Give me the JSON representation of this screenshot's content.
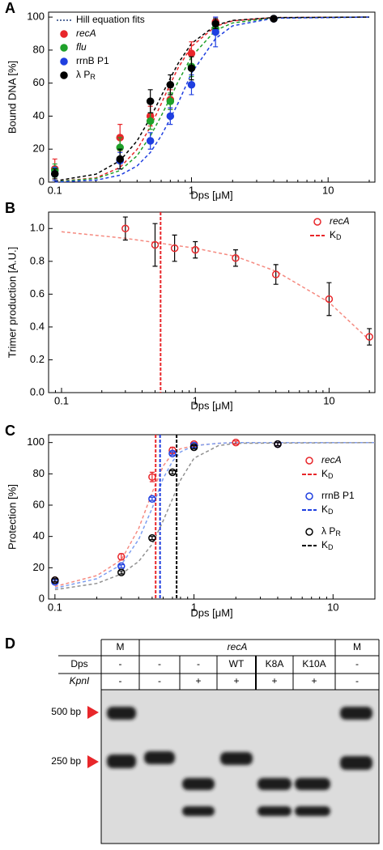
{
  "chart_data": [
    {
      "type": "scatter",
      "panel": "A",
      "xlabel": "Dps [μM]",
      "ylabel": "Bound DNA [%]",
      "xscale": "log",
      "xlim": [
        0.09,
        22
      ],
      "xticks": [
        0.1,
        1,
        10
      ],
      "ylim": [
        0,
        103
      ],
      "yticks": [
        0,
        20,
        40,
        60,
        80,
        100
      ],
      "legend": "upper left",
      "marker": "filled",
      "fit_label": "Hill equation fits",
      "fit_color": "#24407f",
      "fit_x": [
        0.1,
        0.2,
        0.3,
        0.4,
        0.5,
        0.6,
        0.7,
        0.8,
        1,
        1.5,
        2,
        4,
        20
      ],
      "series": [
        {
          "name": "recA",
          "color": "#e8262a",
          "fit_color": "#e8262a",
          "x": [
            0.1,
            0.3,
            0.5,
            0.7,
            1,
            1.5,
            4
          ],
          "values": [
            8,
            27,
            40,
            50,
            78,
            97,
            99
          ],
          "errors": [
            6,
            8,
            6,
            6,
            7,
            3,
            1
          ],
          "fit": [
            0.3,
            2.6,
            8.9,
            19.8,
            33.4,
            47.4,
            59.5,
            69.3,
            82.2,
            94.4,
            97.7,
            99.7,
            100
          ]
        },
        {
          "name": "flu",
          "color": "#1fa12a",
          "fit_color": "#1fa12a",
          "x": [
            0.1,
            0.3,
            0.5,
            0.7,
            1,
            1.5,
            4
          ],
          "values": [
            7,
            21,
            37,
            49,
            70,
            93,
            99
          ],
          "errors": [
            4,
            6,
            5,
            5,
            6,
            3,
            1
          ],
          "fit": [
            0.3,
            2.2,
            7,
            16,
            28,
            40,
            51,
            61,
            76,
            92,
            96.5,
            99.5,
            100
          ]
        },
        {
          "name": "rrnB P1",
          "color": "#1f3fe0",
          "fit_color": "#1f3fe0",
          "x": [
            0.1,
            0.3,
            0.5,
            0.7,
            1,
            1.5,
            4
          ],
          "values": [
            5,
            13,
            25,
            40,
            59,
            91,
            99
          ],
          "errors": [
            4,
            5,
            5,
            5,
            6,
            9,
            1
          ],
          "fit": [
            0.1,
            1.2,
            4.2,
            9.8,
            18,
            28,
            38.5,
            48,
            66,
            87,
            94.7,
            99.3,
            100
          ]
        },
        {
          "name": "λ P",
          "name_sub": "R",
          "color": "#000000",
          "fit_color": "#000000",
          "x": [
            0.1,
            0.3,
            0.5,
            0.7,
            1,
            1.5,
            4
          ],
          "values": [
            5,
            14,
            49,
            59,
            69,
            96,
            99
          ],
          "errors": [
            3,
            6,
            7,
            6,
            7,
            3,
            1
          ],
          "fit": [
            0.7,
            4.8,
            13,
            25,
            39,
            52,
            63,
            72,
            84,
            95,
            98,
            99.7,
            100
          ]
        }
      ]
    },
    {
      "type": "scatter",
      "panel": "B",
      "xlabel": "Dps [μM]",
      "ylabel": "Trimer production [A.U.]",
      "xscale": "log",
      "xlim": [
        0.08,
        22
      ],
      "xticks": [
        0.1,
        1,
        10
      ],
      "ylim": [
        0,
        1.1
      ],
      "yticks": [
        {
          "value": 0,
          "label": "0.0"
        },
        0.2,
        0.4,
        0.6,
        0.8,
        {
          "value": 1,
          "label": "1.0"
        }
      ],
      "legend": "upper right",
      "marker": "open",
      "errorbar_color": "#000000",
      "fit_x": [
        0.1,
        0.3,
        1,
        2,
        4,
        10,
        20
      ],
      "series": [
        {
          "name": "recA",
          "color": "#e8262a",
          "fit_color": "#f58a80",
          "x": [
            0.3,
            0.5,
            0.7,
            1,
            2,
            4,
            10,
            20
          ],
          "values": [
            1.0,
            0.9,
            0.88,
            0.87,
            0.82,
            0.72,
            0.57,
            0.34
          ],
          "errors": [
            0.07,
            0.13,
            0.08,
            0.05,
            0.05,
            0.06,
            0.1,
            0.05
          ],
          "fit": [
            0.98,
            0.94,
            0.88,
            0.83,
            0.74,
            0.55,
            0.32
          ],
          "kd": {
            "value": 0.55,
            "label": "K",
            "label_sub": "D",
            "color": "#e8262a"
          }
        }
      ]
    },
    {
      "type": "scatter",
      "panel": "C",
      "xlabel": "Dps [μM]",
      "ylabel": "Protection [%]",
      "xscale": "log",
      "xlim": [
        0.09,
        20
      ],
      "xticks": [
        0.1,
        1,
        10
      ],
      "ylim": [
        0,
        105
      ],
      "yticks": [
        0,
        20,
        40,
        60,
        80,
        100
      ],
      "legend": "right",
      "marker": "open",
      "fit_x": [
        0.1,
        0.2,
        0.3,
        0.4,
        0.5,
        0.6,
        0.7,
        0.8,
        1,
        1.5,
        2,
        20
      ],
      "series": [
        {
          "name": "recA",
          "color": "#e8262a",
          "fit_color": "#f58a80",
          "x": [
            0.1,
            0.3,
            0.5,
            0.7,
            1,
            2,
            4
          ],
          "values": [
            12,
            27,
            78,
            95,
            99,
            100,
            99
          ],
          "errors": [
            1,
            2,
            3,
            2,
            1,
            1,
            1
          ],
          "fit": [
            8,
            15,
            25,
            45,
            68,
            85,
            93,
            96,
            98,
            99.5,
            100,
            100
          ],
          "kd": {
            "value": 0.53,
            "label": "K",
            "label_sub": "D",
            "color": "#e8262a"
          }
        },
        {
          "name": "rrnB P1",
          "color": "#1f3fe0",
          "fit_color": "#7d9ef0",
          "x": [
            0.1,
            0.3,
            0.5,
            0.7,
            1,
            4
          ],
          "values": [
            11,
            21,
            64,
            93,
            98,
            99
          ],
          "errors": [
            1,
            1,
            1,
            1,
            1,
            1
          ],
          "fit": [
            7,
            13,
            22,
            38,
            58,
            77,
            88,
            94,
            98,
            99.5,
            100,
            100
          ],
          "kd": {
            "value": 0.57,
            "label": "K",
            "label_sub": "D",
            "color": "#1f3fe0"
          }
        },
        {
          "name": "λ P",
          "name_sub": "R",
          "color": "#000000",
          "fit_color": "#909090",
          "x": [
            0.1,
            0.3,
            0.5,
            0.7,
            1,
            4
          ],
          "values": [
            12,
            17,
            39,
            81,
            97,
            99
          ],
          "errors": [
            1,
            1,
            1,
            1,
            1,
            1
          ],
          "fit": [
            6,
            10,
            16,
            24,
            35,
            50,
            64,
            76,
            90,
            98,
            99.5,
            100
          ],
          "kd": {
            "value": 0.75,
            "label": "K",
            "label_sub": "D",
            "color": "#000000"
          }
        }
      ]
    }
  ],
  "gel": {
    "panel": "D",
    "header": [
      "M",
      "recA",
      "M"
    ],
    "rows": [
      {
        "label": "Dps",
        "cells": [
          "-",
          "-",
          "-",
          "WT",
          "K8A",
          "K10A",
          "-"
        ]
      },
      {
        "label": "KpnI",
        "cells": [
          "-",
          "-",
          "+",
          "+",
          "+",
          "+",
          "-"
        ]
      }
    ],
    "markers": [
      "500 bp",
      "250 bp"
    ]
  }
}
